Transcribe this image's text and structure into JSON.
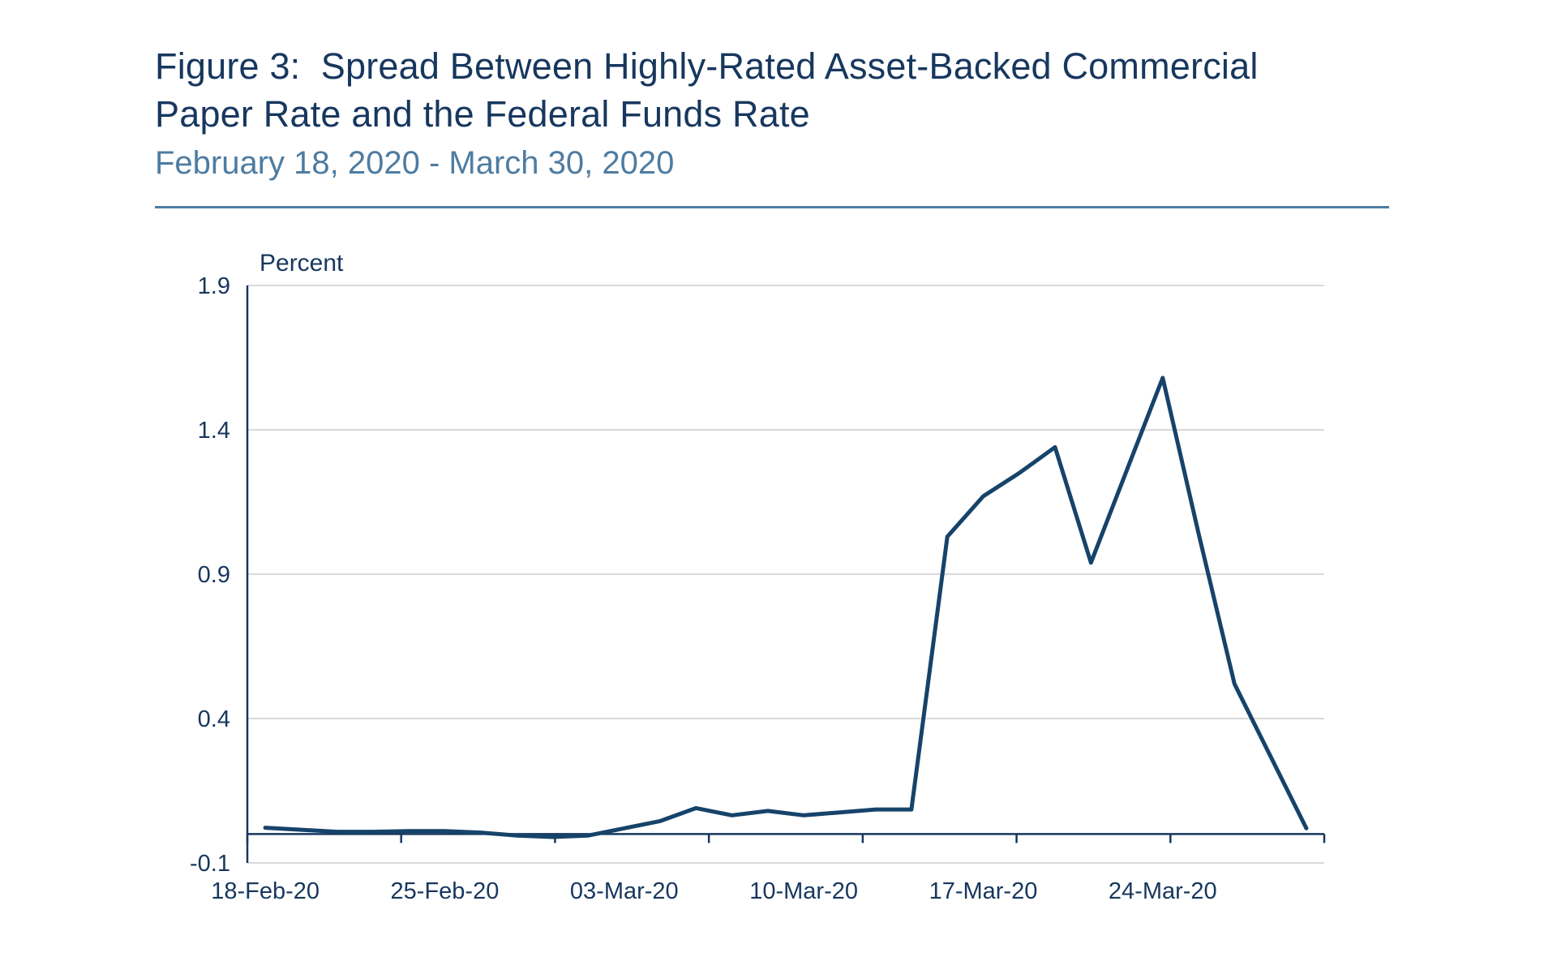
{
  "header": {
    "title_line1": "Figure 3:  Spread Between Highly-Rated Asset-Backed Commercial",
    "title_line2": "Paper Rate and the Federal Funds Rate",
    "subtitle": "February 18, 2020 - March 30, 2020"
  },
  "chart_data": {
    "type": "line",
    "title": "Figure 3: Spread Between Highly-Rated Asset-Backed Commercial Paper Rate and the Federal Funds Rate",
    "subtitle": "February 18, 2020 - March 30, 2020",
    "ylabel": "Percent",
    "xlabel": "",
    "x": [
      "18-Feb-20",
      "19-Feb-20",
      "20-Feb-20",
      "21-Feb-20",
      "24-Feb-20",
      "25-Feb-20",
      "26-Feb-20",
      "27-Feb-20",
      "28-Feb-20",
      "02-Mar-20",
      "03-Mar-20",
      "04-Mar-20",
      "05-Mar-20",
      "06-Mar-20",
      "09-Mar-20",
      "10-Mar-20",
      "11-Mar-20",
      "12-Mar-20",
      "13-Mar-20",
      "16-Mar-20",
      "17-Mar-20",
      "18-Mar-20",
      "19-Mar-20",
      "20-Mar-20",
      "23-Mar-20",
      "24-Mar-20",
      "25-Mar-20",
      "26-Mar-20",
      "27-Mar-20",
      "30-Mar-20"
    ],
    "values": [
      0.022,
      0.015,
      0.008,
      0.008,
      0.01,
      0.01,
      0.005,
      -0.005,
      -0.01,
      -0.005,
      0.02,
      0.045,
      0.09,
      0.065,
      0.08,
      0.065,
      0.075,
      0.085,
      0.085,
      1.03,
      1.17,
      1.25,
      1.34,
      0.94,
      1.26,
      1.58,
      1.04,
      0.52,
      0.27,
      0.02
    ],
    "x_tick_labels": [
      "18-Feb-20",
      "25-Feb-20",
      "03-Mar-20",
      "10-Mar-20",
      "17-Mar-20",
      "24-Mar-20"
    ],
    "x_tick_label_indices": [
      0,
      5,
      10,
      15,
      20,
      25
    ],
    "y_ticks": [
      1.9,
      1.4,
      0.9,
      0.4,
      -0.1
    ],
    "ylim": [
      -0.1,
      1.9
    ],
    "grid": "horizontal",
    "legend_position": "none"
  },
  "colors": {
    "title": "#17375E",
    "subtitle": "#4E7CA1",
    "rule": "#4E7CA1",
    "line": "#16436A",
    "axis": "#17375E",
    "tick_label": "#17375E",
    "grid": "#D9D9D9",
    "background": "#FFFFFF"
  }
}
